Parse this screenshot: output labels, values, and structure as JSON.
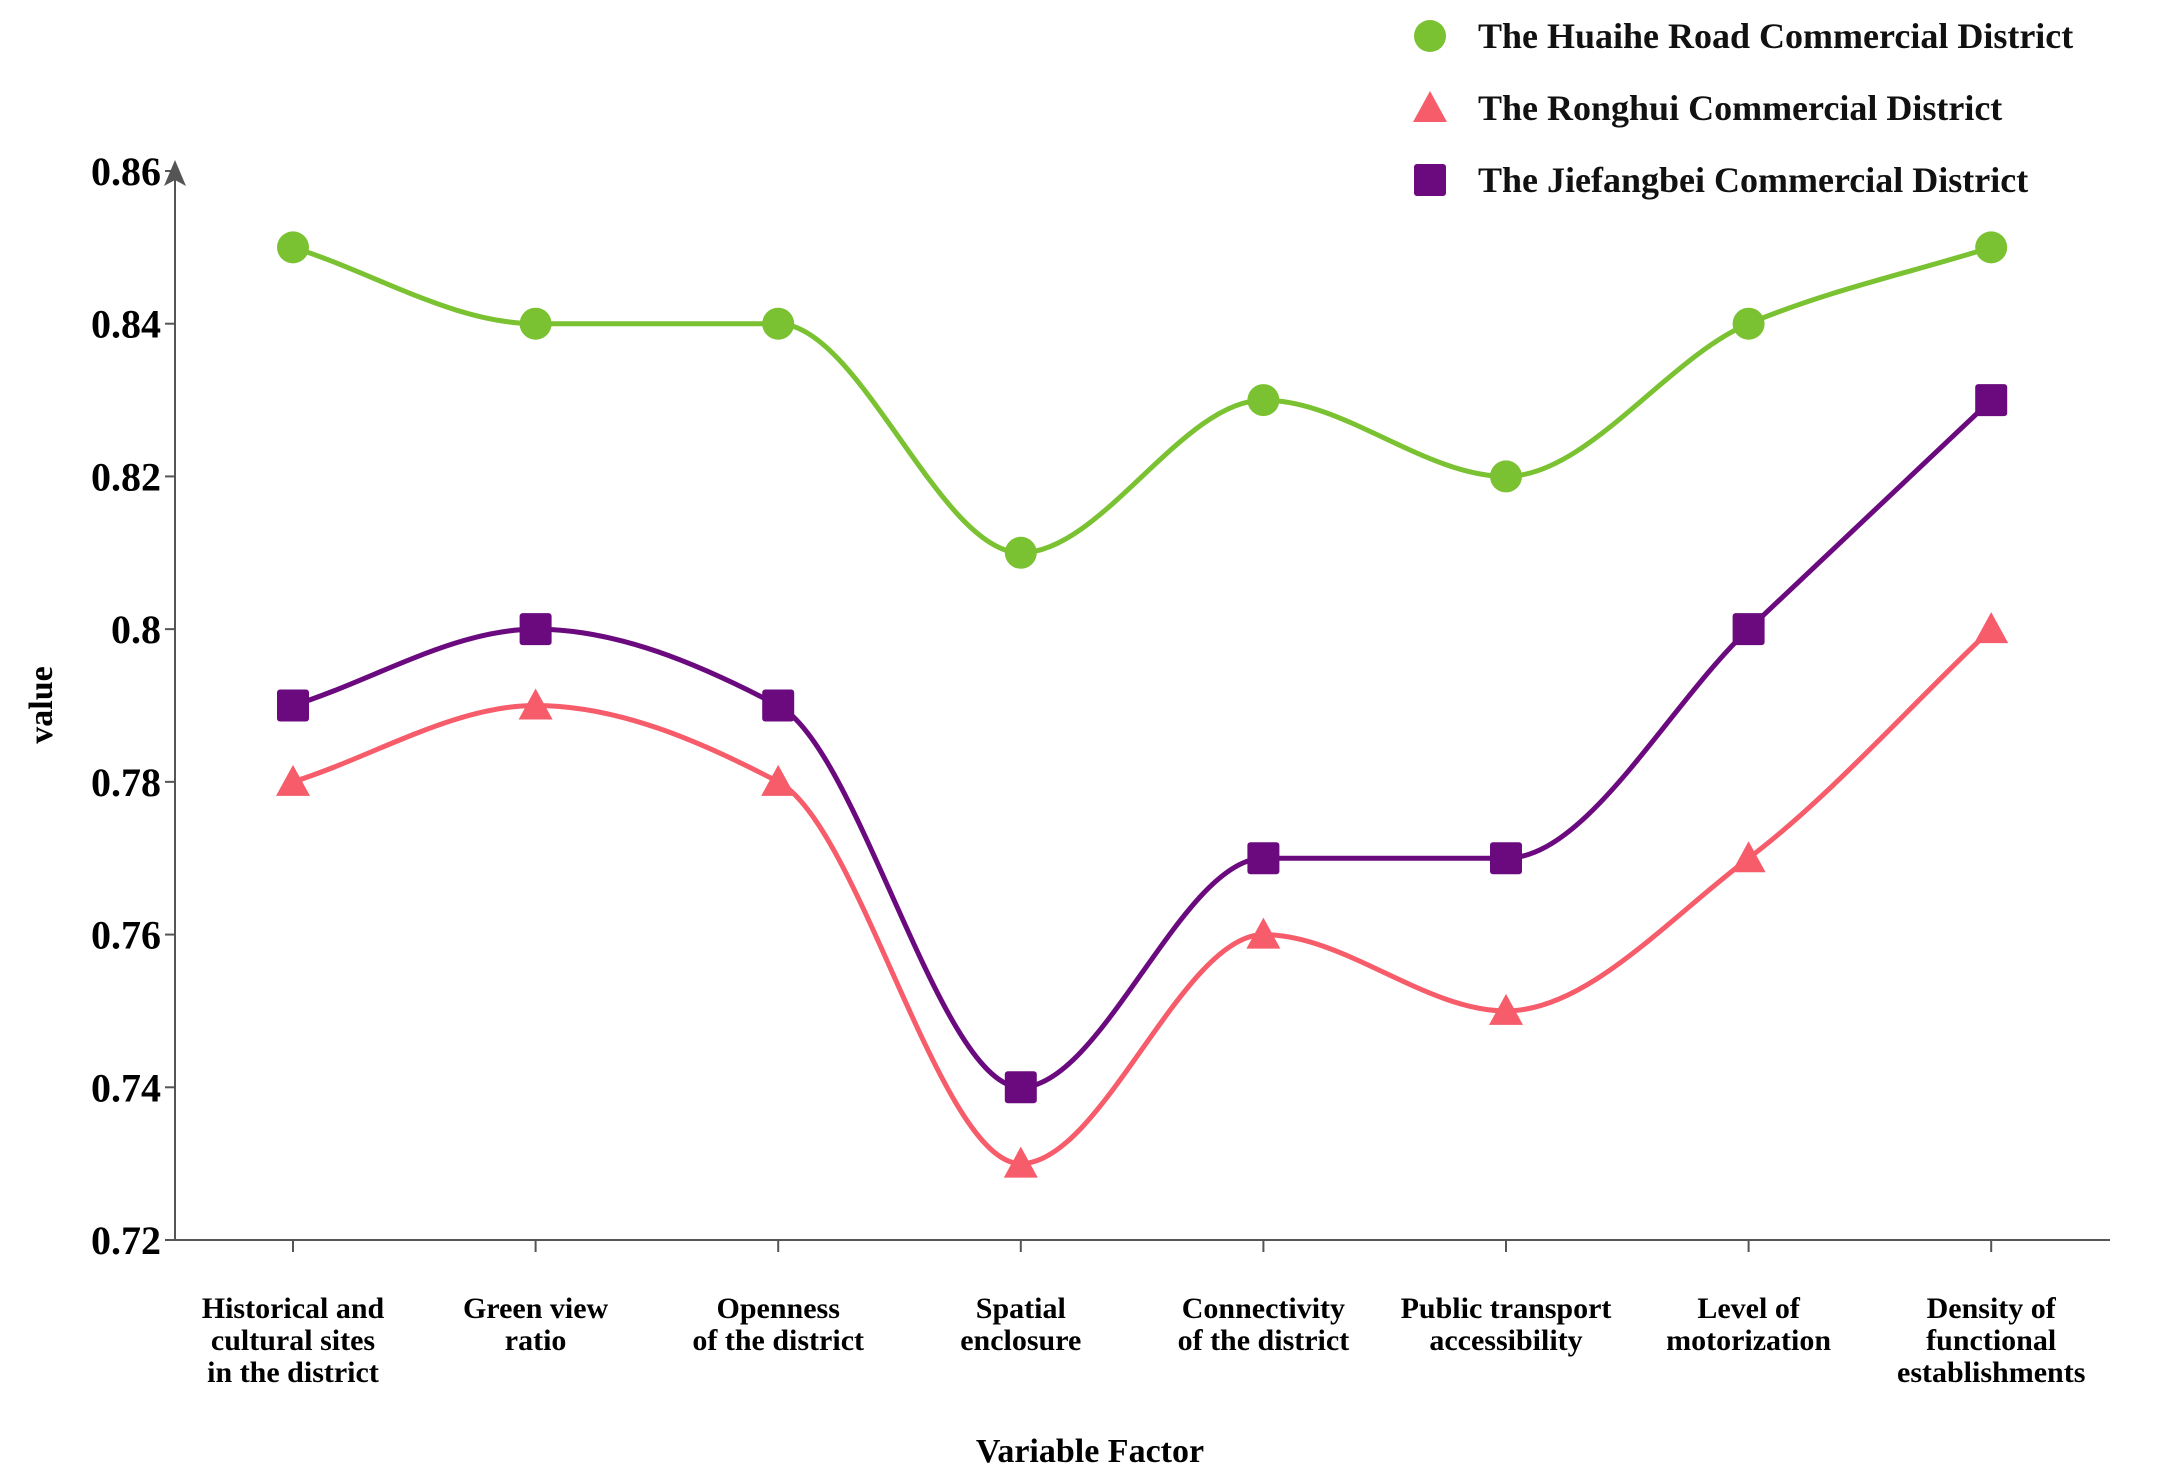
{
  "chart_data": {
    "type": "line",
    "smooth": true,
    "title": "",
    "xlabel": "Variable Factor",
    "ylabel": "value",
    "ylim": [
      0.72,
      0.86
    ],
    "yticks": [
      "0.72",
      "0.74",
      "0.76",
      "0.78",
      "0.8",
      "0.82",
      "0.84",
      "0.86"
    ],
    "ytick_values": [
      0.72,
      0.74,
      0.76,
      0.78,
      0.8,
      0.82,
      0.84,
      0.86
    ],
    "categories": [
      [
        "Historical and",
        "cultural sites",
        "in the district"
      ],
      [
        "Green view",
        "ratio"
      ],
      [
        "Openness",
        "of the district"
      ],
      [
        "Spatial",
        "enclosure"
      ],
      [
        "Connectivity",
        "of the district"
      ],
      [
        "Public transport",
        "accessibility"
      ],
      [
        "Level of",
        "motorization"
      ],
      [
        "Density of",
        "functional",
        "establishments"
      ]
    ],
    "legend_position": "top-right",
    "series": [
      {
        "name": "The Huaihe Road Commercial District",
        "color": "#7ac231",
        "marker": "circle",
        "values": [
          0.85,
          0.84,
          0.84,
          0.81,
          0.83,
          0.82,
          0.84,
          0.85
        ]
      },
      {
        "name": "The Ronghui Commercial District",
        "color": "#f75c6b",
        "marker": "triangle",
        "values": [
          0.78,
          0.79,
          0.78,
          0.73,
          0.76,
          0.75,
          0.77,
          0.8
        ]
      },
      {
        "name": "The Jiefangbei Commercial District",
        "color": "#6a0a7e",
        "marker": "square",
        "values": [
          0.79,
          0.8,
          0.79,
          0.74,
          0.77,
          0.77,
          0.8,
          0.83
        ]
      }
    ]
  }
}
